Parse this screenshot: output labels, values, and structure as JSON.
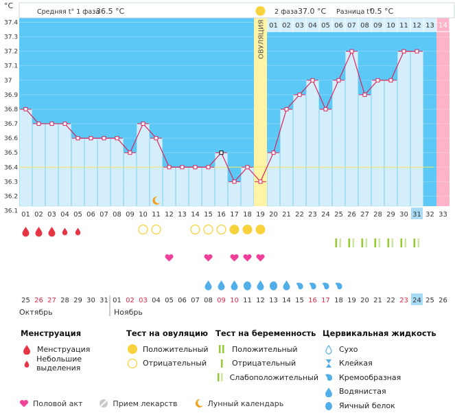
{
  "chart_data": {
    "type": "line",
    "y_unit": "°C",
    "y_ticks": [
      "37.4",
      "37.3",
      "37.2",
      "37.1",
      "37",
      "36.9",
      "36.8",
      "36.7",
      "36.6",
      "36.5",
      "36.4",
      "36.3",
      "36.2",
      "36.1"
    ],
    "ylim": [
      36.1,
      37.4
    ],
    "cycle_days": [
      "01",
      "02",
      "03",
      "04",
      "05",
      "06",
      "07",
      "08",
      "09",
      "10",
      "11",
      "12",
      "13",
      "14",
      "15",
      "16",
      "17",
      "18",
      "19",
      "20",
      "21",
      "22",
      "23",
      "24",
      "25",
      "26",
      "27",
      "28",
      "29",
      "30",
      "31",
      "32",
      "33"
    ],
    "phase2_days": [
      "01",
      "02",
      "03",
      "04",
      "05",
      "06",
      "07",
      "08",
      "09",
      "10",
      "11",
      "12",
      "13",
      "14"
    ],
    "values": [
      36.8,
      36.7,
      36.7,
      36.7,
      36.6,
      36.6,
      36.6,
      36.6,
      36.5,
      36.7,
      36.6,
      36.4,
      36.4,
      36.4,
      36.4,
      36.5,
      36.3,
      36.4,
      36.3,
      36.5,
      36.8,
      36.9,
      37.0,
      36.8,
      37.0,
      37.2,
      36.9,
      37.0,
      37.0,
      37.2,
      37.2,
      null,
      null
    ],
    "coverline": 36.4,
    "ovulation_day": 19,
    "ovulation_label": "ОВУЛЯЦИЯ",
    "today_cycle_day": 31,
    "period_day": 33,
    "phase1_label": "Средняя t° 1 фаза",
    "phase1_value": "36.5 °C",
    "phase2_label": "2 фаза",
    "phase2_value": "37.0 °C",
    "diff_label": "Разница t°",
    "diff_value": "0.5 °C",
    "moon_day": 11,
    "calendar_dates": [
      "25",
      "26",
      "27",
      "28",
      "29",
      "30",
      "31",
      "01",
      "02",
      "03",
      "04",
      "05",
      "06",
      "07",
      "08",
      "09",
      "10",
      "11",
      "12",
      "13",
      "14",
      "15",
      "16",
      "17",
      "18",
      "19",
      "20",
      "21",
      "22",
      "23",
      "24",
      "25",
      "26"
    ],
    "red_date_indices": [
      1,
      2,
      8,
      9,
      15,
      16,
      22,
      23,
      29
    ],
    "today_date_index": 30,
    "month1": "Октябрь",
    "month2": "Ноябрь",
    "menstruation": [
      {
        "day": 1,
        "size": "large"
      },
      {
        "day": 2,
        "size": "large"
      },
      {
        "day": 3,
        "size": "large"
      },
      {
        "day": 4,
        "size": "small"
      },
      {
        "day": 5,
        "size": "small"
      }
    ],
    "ovulation_tests": [
      {
        "day": 10,
        "result": "negative"
      },
      {
        "day": 11,
        "result": "negative"
      },
      {
        "day": 14,
        "result": "negative"
      },
      {
        "day": 15,
        "result": "negative"
      },
      {
        "day": 16,
        "result": "negative"
      },
      {
        "day": 17,
        "result": "positive"
      },
      {
        "day": 18,
        "result": "positive"
      },
      {
        "day": 19,
        "result": "positive"
      }
    ],
    "pregnancy_tests": [
      {
        "day": 25,
        "result": "weak"
      },
      {
        "day": 26,
        "result": "weak"
      },
      {
        "day": 27,
        "result": "weak"
      },
      {
        "day": 28,
        "result": "weak"
      },
      {
        "day": 29,
        "result": "weak"
      },
      {
        "day": 30,
        "result": "weak"
      },
      {
        "day": 31,
        "result": "weak"
      }
    ],
    "intercourse_days": [
      12,
      15,
      17,
      18,
      19
    ],
    "cervical_fluid": [
      {
        "day": 15,
        "type": "watery"
      },
      {
        "day": 16,
        "type": "watery"
      },
      {
        "day": 17,
        "type": "watery"
      },
      {
        "day": 18,
        "type": "eggwhite"
      },
      {
        "day": 19,
        "type": "watery"
      },
      {
        "day": 20,
        "type": "eggwhite"
      },
      {
        "day": 21,
        "type": "watery"
      },
      {
        "day": 22,
        "type": "creamy"
      },
      {
        "day": 23,
        "type": "creamy"
      },
      {
        "day": 24,
        "type": "creamy"
      },
      {
        "day": 25,
        "type": "creamy"
      }
    ]
  },
  "legend": {
    "menstruation": {
      "title": "Менструация",
      "items": [
        "Менструация",
        "Небольшие выделения"
      ]
    },
    "ovulation_test": {
      "title": "Тест на овуляцию",
      "items": [
        "Положительный",
        "Отрицательный"
      ]
    },
    "pregnancy_test": {
      "title": "Тест на беременность",
      "items": [
        "Положительный",
        "Отрицательный",
        "Слабоположительный"
      ]
    },
    "cervical": {
      "title": "Цервикальная жидкость",
      "items": [
        "Сухо",
        "Клейкая",
        "Кремообразная",
        "Водянистая",
        "Яичный белок"
      ]
    },
    "bottom": [
      "Половой акт",
      "Прием лекарств",
      "Лунный календарь"
    ]
  },
  "colors": {
    "sky": "#5bc8f5",
    "bar": "#d4eefb",
    "bar_edge": "#b5dff3",
    "line": "#d9245a",
    "ovulation": "#fff3a6",
    "ovulation_dot": "#f8d23c",
    "period": "#ffb3c8",
    "red_text": "#e0284a",
    "drop": "#e53545",
    "heart": "#f0409a",
    "cervical": "#52aee8",
    "preg_test": "#96c832",
    "moon": "#f3a11d"
  }
}
